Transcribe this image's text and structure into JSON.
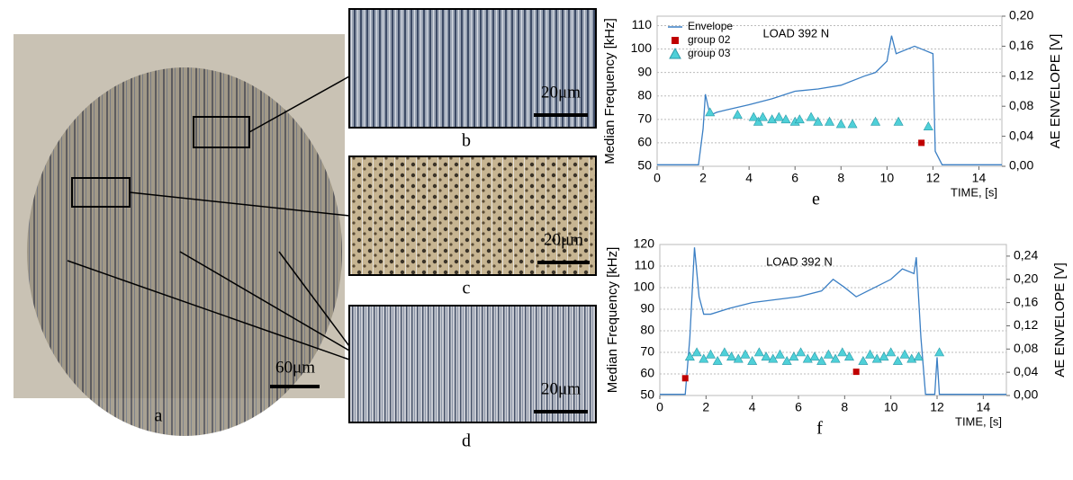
{
  "images": [
    {
      "label": "a",
      "scale_bar": "60μm"
    },
    {
      "label": "b",
      "scale_bar": "20μm"
    },
    {
      "label": "c",
      "scale_bar": "20μm"
    },
    {
      "label": "d",
      "scale_bar": "20μm"
    }
  ],
  "chart_data": [
    {
      "type": "line",
      "label": "e",
      "annotation": "LOAD 392 N",
      "x_label": "TIME, [s]",
      "y_label": "Median Frequency [kHz]",
      "y2_label": "AE ENVELOPE [V]",
      "xlim": [
        0,
        15
      ],
      "xticks": [
        0,
        2,
        4,
        6,
        8,
        10,
        12,
        14
      ],
      "ylim": [
        50,
        114
      ],
      "yticks": [
        50,
        60,
        70,
        80,
        90,
        100,
        110
      ],
      "y2lim": [
        0,
        0.2
      ],
      "y2ticks": [
        {
          "value": 0,
          "label": "0,00"
        },
        {
          "value": 0.04,
          "label": "0,04"
        },
        {
          "value": 0.08,
          "label": "0,08"
        },
        {
          "value": 0.12,
          "label": "0,12"
        },
        {
          "value": 0.16,
          "label": "0,16"
        },
        {
          "value": 0.2,
          "label": "0,20"
        }
      ],
      "grid": true,
      "legend": "upper left",
      "series": [
        {
          "name": "Envelope",
          "type": "line",
          "axis": "y2",
          "color": "#3b7fc4",
          "x": [
            0,
            1.8,
            2.0,
            2.1,
            2.3,
            2.6,
            3,
            4,
            5,
            6,
            7,
            8,
            9,
            9.5,
            10,
            10.2,
            10.4,
            10.8,
            11.2,
            11.6,
            12,
            12.1,
            12.4,
            15
          ],
          "values": [
            0.002,
            0.002,
            0.05,
            0.096,
            0.068,
            0.072,
            0.075,
            0.082,
            0.09,
            0.1,
            0.103,
            0.108,
            0.12,
            0.125,
            0.14,
            0.174,
            0.15,
            0.155,
            0.16,
            0.155,
            0.15,
            0.02,
            0.002,
            0.002
          ]
        },
        {
          "name": "group 02",
          "type": "scatter",
          "marker": "square",
          "color": "#c00000",
          "x": [
            11.5
          ],
          "values": [
            60
          ]
        },
        {
          "name": "group 03",
          "type": "scatter",
          "marker": "triangle",
          "color": "#4fd0d8",
          "x": [
            2.3,
            3.5,
            4.2,
            4.4,
            4.6,
            5,
            5.3,
            5.6,
            6,
            6.2,
            6.7,
            7,
            7.5,
            8,
            8.5,
            9.5,
            10.5,
            11.8
          ],
          "values": [
            73,
            72,
            71,
            69,
            71,
            70,
            71,
            70,
            69,
            70,
            71,
            69,
            69,
            68,
            68,
            69,
            69,
            67
          ]
        }
      ]
    },
    {
      "type": "line",
      "label": "f",
      "annotation": "LOAD 392 N",
      "x_label": "TIME, [s]",
      "y_label": "Median Frequency [kHz]",
      "y2_label": "AE ENVELOPE [V]",
      "xlim": [
        0,
        15
      ],
      "xticks": [
        0,
        2,
        4,
        6,
        8,
        10,
        12,
        14
      ],
      "ylim": [
        50,
        120
      ],
      "yticks": [
        50,
        60,
        70,
        80,
        90,
        100,
        110,
        120
      ],
      "y2lim": [
        0,
        0.26
      ],
      "y2ticks": [
        {
          "value": 0,
          "label": "0,00"
        },
        {
          "value": 0.04,
          "label": "0,04"
        },
        {
          "value": 0.08,
          "label": "0,08"
        },
        {
          "value": 0.12,
          "label": "0,12"
        },
        {
          "value": 0.16,
          "label": "0,16"
        },
        {
          "value": 0.2,
          "label": "0,20"
        },
        {
          "value": 0.24,
          "label": "0,24"
        }
      ],
      "grid": true,
      "series": [
        {
          "name": "Envelope",
          "type": "line",
          "axis": "y2",
          "color": "#3b7fc4",
          "x": [
            0,
            1.1,
            1.3,
            1.5,
            1.7,
            1.9,
            2.2,
            3,
            4,
            5,
            6,
            7,
            7.5,
            8,
            8.5,
            9,
            10,
            10.5,
            11,
            11.1,
            11.3,
            11.5,
            11.9,
            12,
            12.1,
            12.3,
            15
          ],
          "values": [
            0.002,
            0.002,
            0.1,
            0.255,
            0.17,
            0.14,
            0.14,
            0.15,
            0.16,
            0.165,
            0.17,
            0.18,
            0.2,
            0.186,
            0.17,
            0.18,
            0.2,
            0.218,
            0.21,
            0.238,
            0.1,
            0.002,
            0.002,
            0.066,
            0.002,
            0.002,
            0.002
          ]
        },
        {
          "name": "group 02",
          "type": "scatter",
          "marker": "square",
          "color": "#c00000",
          "x": [
            1.1,
            8.5
          ],
          "values": [
            58,
            61
          ]
        },
        {
          "name": "group 03",
          "type": "scatter",
          "marker": "triangle",
          "color": "#4fd0d8",
          "x": [
            1.3,
            1.6,
            1.9,
            2.2,
            2.5,
            2.8,
            3.1,
            3.4,
            3.7,
            4,
            4.3,
            4.6,
            4.9,
            5.2,
            5.5,
            5.8,
            6.1,
            6.4,
            6.7,
            7,
            7.3,
            7.6,
            7.9,
            8.2,
            8.8,
            9.1,
            9.4,
            9.7,
            10,
            10.3,
            10.6,
            10.9,
            11.2,
            12.1
          ],
          "values": [
            68,
            70,
            67,
            69,
            66,
            70,
            68,
            67,
            69,
            66,
            70,
            68,
            67,
            69,
            66,
            68,
            70,
            67,
            68,
            66,
            69,
            67,
            70,
            68,
            66,
            69,
            67,
            68,
            70,
            66,
            69,
            67,
            68,
            70
          ]
        }
      ]
    }
  ]
}
